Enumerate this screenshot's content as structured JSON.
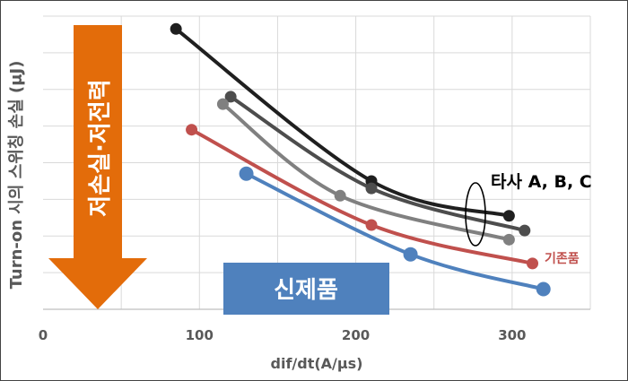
{
  "chart_data": {
    "type": "line",
    "xlabel": "dif/dt(A/μs)",
    "ylabel": "Turn-on 시의 스위칭 손실 (μJ)",
    "xlim": [
      0,
      350
    ],
    "ylim": [
      0,
      8
    ],
    "x_ticks": [
      "0",
      "100",
      "200",
      "300"
    ],
    "grid": true,
    "series": [
      {
        "color": "#1f1f1f",
        "points": [
          [
            85,
            7.65
          ],
          [
            210,
            3.5
          ],
          [
            298,
            2.55
          ]
        ]
      },
      {
        "color": "#4d4d4d",
        "points": [
          [
            120,
            5.8
          ],
          [
            210,
            3.3
          ],
          [
            308,
            2.15
          ]
        ]
      },
      {
        "color": "#808080",
        "points": [
          [
            115,
            5.6
          ],
          [
            190,
            3.1
          ],
          [
            298,
            1.9
          ]
        ]
      },
      {
        "color": "#c0504d",
        "points": [
          [
            95,
            4.9
          ],
          [
            210,
            2.3
          ],
          [
            313,
            1.25
          ]
        ]
      },
      {
        "color": "#4f81bd",
        "points": [
          [
            130,
            3.7
          ],
          [
            235,
            1.5
          ],
          [
            320,
            0.55
          ]
        ]
      }
    ],
    "annotations": {
      "competitor_label": "타사 A, B, C",
      "existing_label": "기존품",
      "new_product_label": "신제품",
      "arrow_label": "저손실·저전력"
    },
    "colors": {
      "arrow": "#e36c0a",
      "new_box": "#4f81bd",
      "existing_text": "#c0504d"
    }
  }
}
